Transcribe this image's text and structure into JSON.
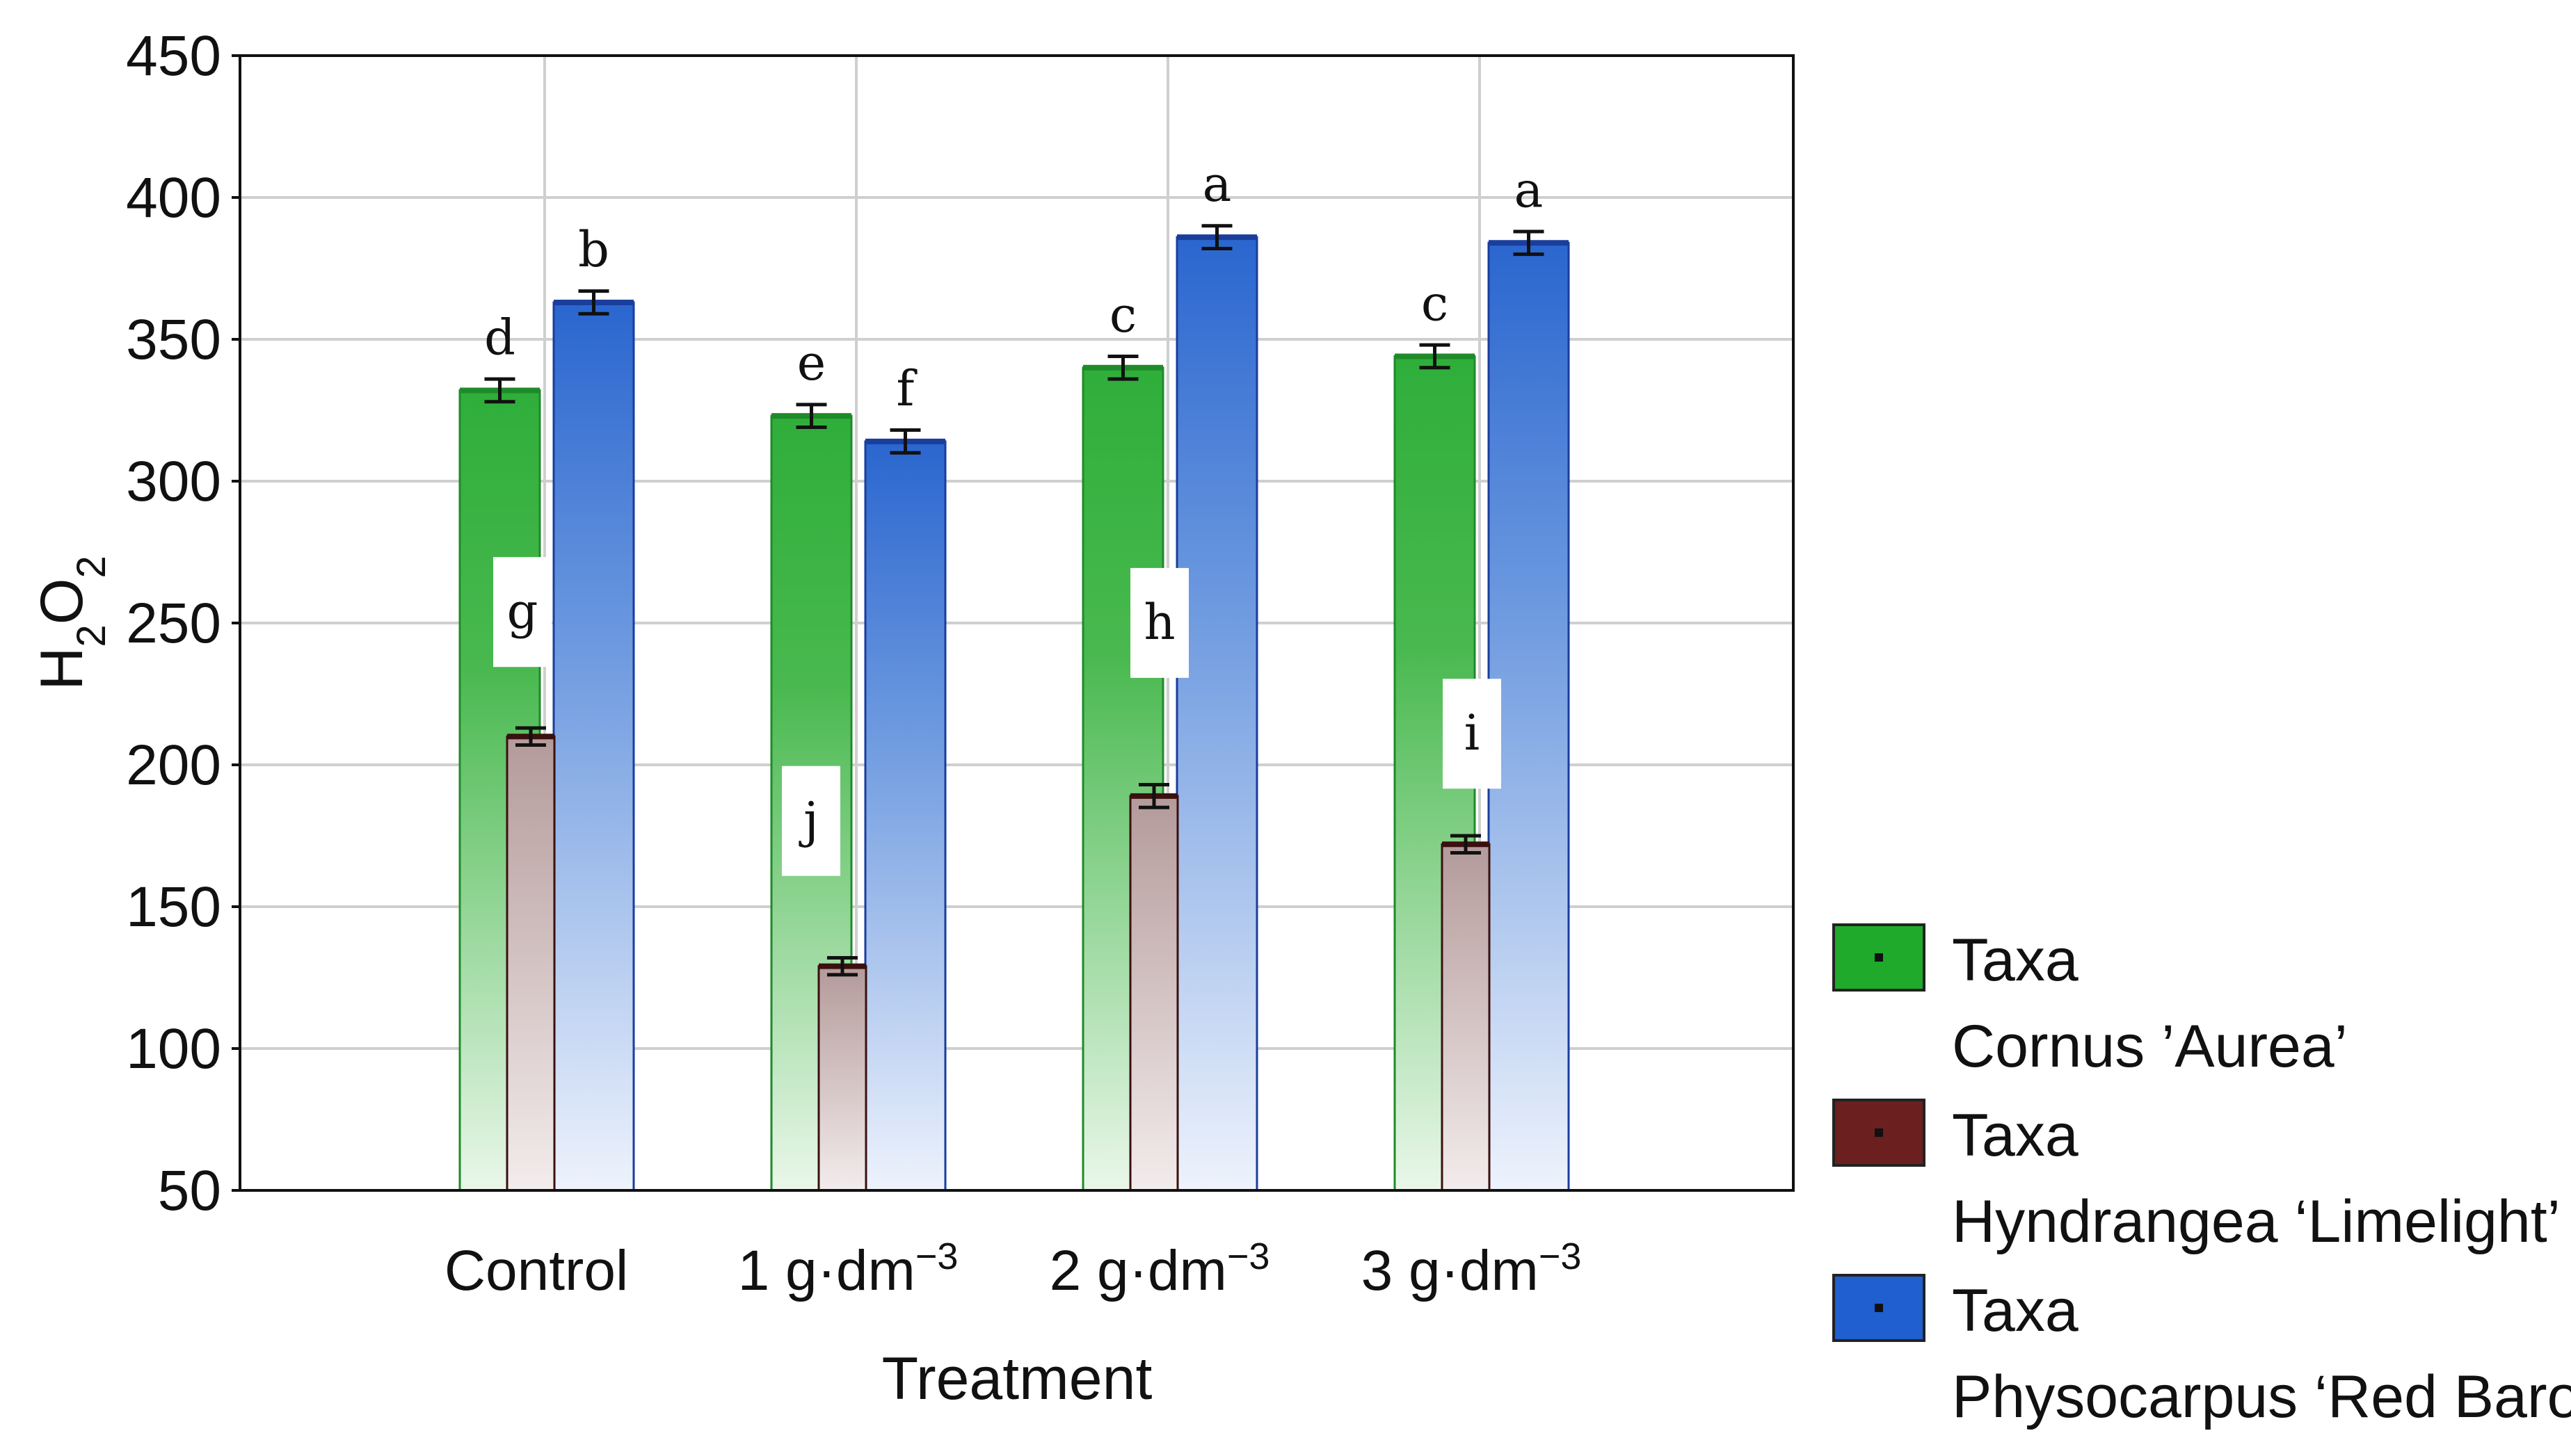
{
  "chart_data": {
    "type": "bar",
    "xlabel": "Treatment",
    "ylabel": "H2O2",
    "ylim": [
      50,
      450
    ],
    "yticks": [
      50,
      100,
      150,
      200,
      250,
      300,
      350,
      400,
      450
    ],
    "grid": true,
    "legend_position": "right",
    "categories": [
      {
        "base": "Control",
        "sup": ""
      },
      {
        "base": "1 g·dm",
        "sup": "−3"
      },
      {
        "base": "2 g·dm",
        "sup": "−3"
      },
      {
        "base": "3 g·dm",
        "sup": "−3"
      }
    ],
    "series": [
      {
        "key": "cornus",
        "legend_line1": "Taxa",
        "legend_line2": "Cornus ’Aurea’",
        "color": "#22aa33",
        "values": [
          332,
          323,
          340,
          344
        ],
        "errors": [
          4,
          4,
          4,
          4
        ],
        "letters": [
          "d",
          "e",
          "c",
          "c"
        ]
      },
      {
        "key": "hydrangea",
        "legend_line1": "Taxa",
        "legend_line2": "Hyndrangea ‘Limelight’",
        "color": "#6b2020",
        "values": [
          210,
          129,
          189,
          172
        ],
        "errors": [
          3,
          3,
          4,
          3
        ],
        "letters": [
          "g",
          "j",
          "h",
          "i"
        ]
      },
      {
        "key": "physocarpus",
        "legend_line1": "Taxa",
        "legend_line2": "Physocarpus ‘Red Baron’",
        "color": "#1f5fd0",
        "values": [
          363,
          314,
          386,
          384
        ],
        "errors": [
          4,
          4,
          4,
          4
        ],
        "letters": [
          "b",
          "f",
          "a",
          "a"
        ]
      }
    ]
  }
}
